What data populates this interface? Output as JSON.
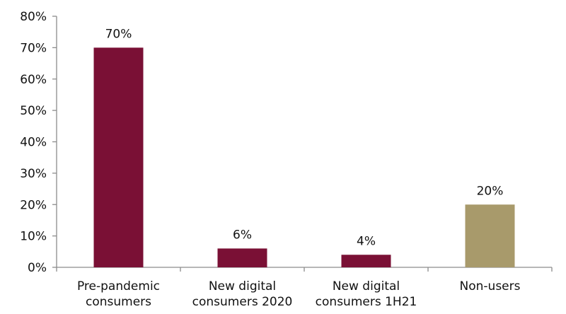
{
  "chart_data": {
    "type": "bar",
    "categories": [
      [
        "Pre-pandemic",
        "consumers"
      ],
      [
        "New digital",
        "consumers 2020"
      ],
      [
        "New digital",
        "consumers 1H21"
      ],
      [
        "Non-users"
      ]
    ],
    "values": [
      70,
      6,
      4,
      20
    ],
    "data_labels": [
      "70%",
      "6%",
      "4%",
      "20%"
    ],
    "bar_colors": [
      "#7a1035",
      "#7a1035",
      "#7a1035",
      "#a89a6b"
    ],
    "ylim": [
      0,
      80
    ],
    "yticks": [
      0,
      10,
      20,
      30,
      40,
      50,
      60,
      70,
      80
    ],
    "ytick_labels": [
      "0%",
      "10%",
      "20%",
      "30%",
      "40%",
      "50%",
      "60%",
      "70%",
      "80%"
    ],
    "grid": false,
    "legend": "none"
  }
}
